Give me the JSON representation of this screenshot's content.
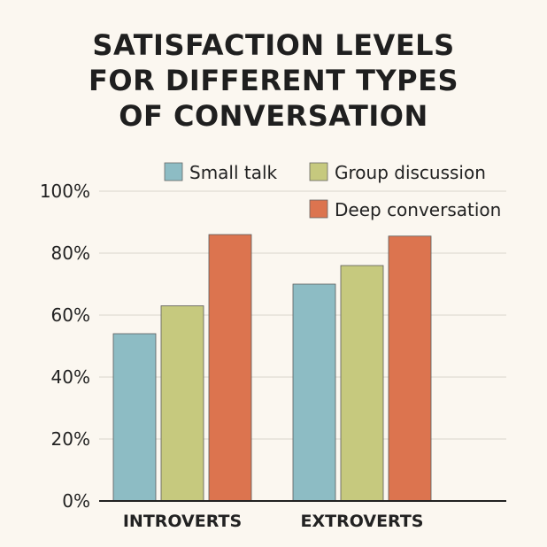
{
  "chart_data": {
    "type": "bar",
    "title_lines": [
      "SATISFACTION LEVELS",
      "FOR DIFFERENT TYPES",
      "OF CONVERSATION"
    ],
    "categories": [
      "INTROVERTS",
      "EXTROVERTS"
    ],
    "series": [
      {
        "name": "Small talk",
        "values": [
          54,
          70
        ],
        "color": "#8dbcc4"
      },
      {
        "name": "Group discussion",
        "values": [
          63,
          76
        ],
        "color": "#c6c97e"
      },
      {
        "name": "Deep conversation",
        "values": [
          86,
          85.5
        ],
        "color": "#dc744f"
      }
    ],
    "ylim": [
      0,
      100
    ],
    "yticks": [
      0,
      20,
      40,
      60,
      80,
      100
    ],
    "ytick_labels": [
      "0%",
      "20%",
      "40%",
      "60%",
      "80%",
      "100%"
    ],
    "grid": true,
    "legend_position": "top-right"
  }
}
